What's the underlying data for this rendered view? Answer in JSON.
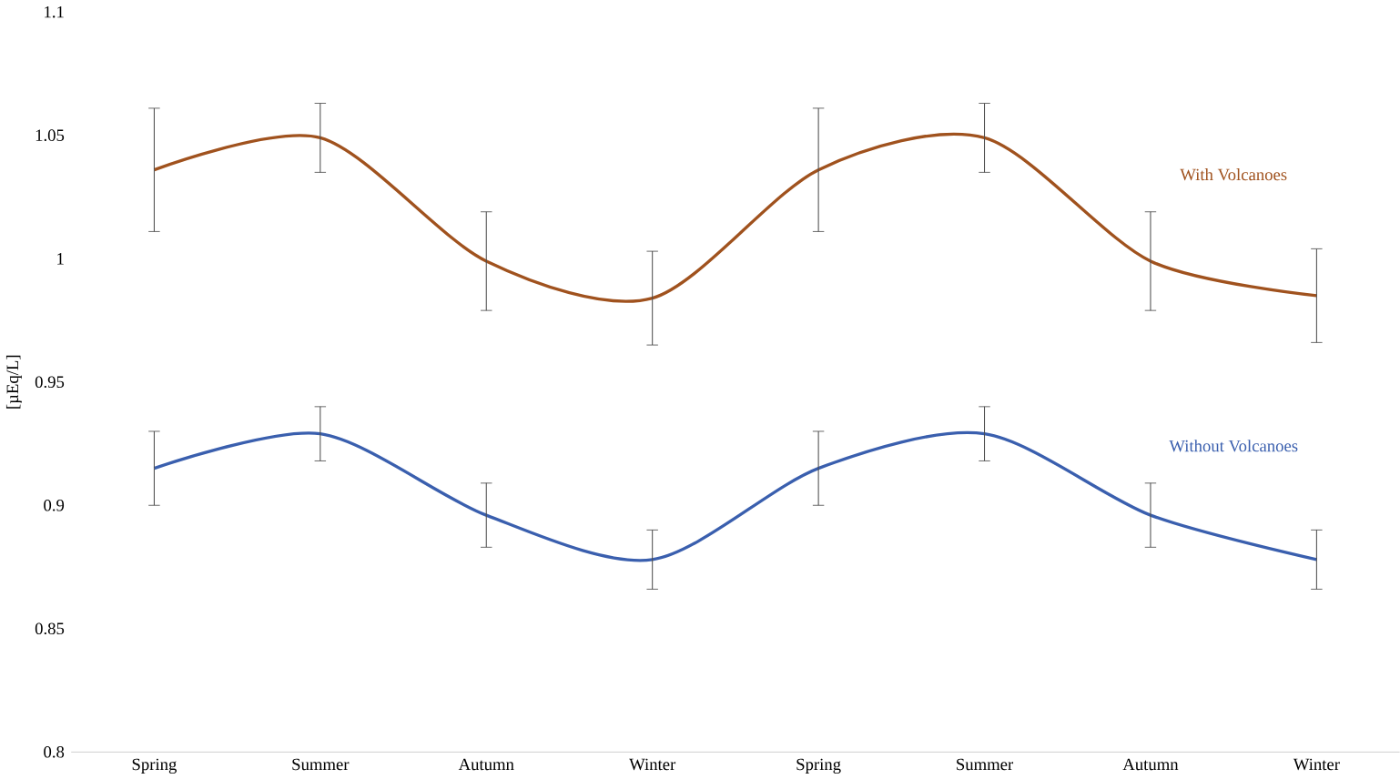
{
  "chart_data": {
    "type": "line",
    "ylabel": "[µEq/L]",
    "categories": [
      "Spring",
      "Summer",
      "Autumn",
      "Winter",
      "Spring",
      "Summer",
      "Autumn",
      "Winter"
    ],
    "series": [
      {
        "name": "With Volcanoes",
        "color": "#a0521e",
        "values": [
          1.036,
          1.049,
          0.999,
          0.984,
          1.036,
          1.049,
          0.999,
          0.985
        ],
        "errors": [
          0.025,
          0.014,
          0.02,
          0.019,
          0.025,
          0.014,
          0.02,
          0.019
        ]
      },
      {
        "name": "Without Volcanoes",
        "color": "#3a5fae",
        "values": [
          0.915,
          0.929,
          0.896,
          0.878,
          0.915,
          0.929,
          0.896,
          0.878
        ],
        "errors": [
          0.015,
          0.011,
          0.013,
          0.012,
          0.015,
          0.011,
          0.013,
          0.012
        ]
      }
    ],
    "ylim": [
      0.8,
      1.1
    ],
    "yticks": [
      0.8,
      0.85,
      0.9,
      0.95,
      1,
      1.05,
      1.1
    ],
    "grid": false,
    "legend": false,
    "marker": "none",
    "line_style": "solid"
  }
}
